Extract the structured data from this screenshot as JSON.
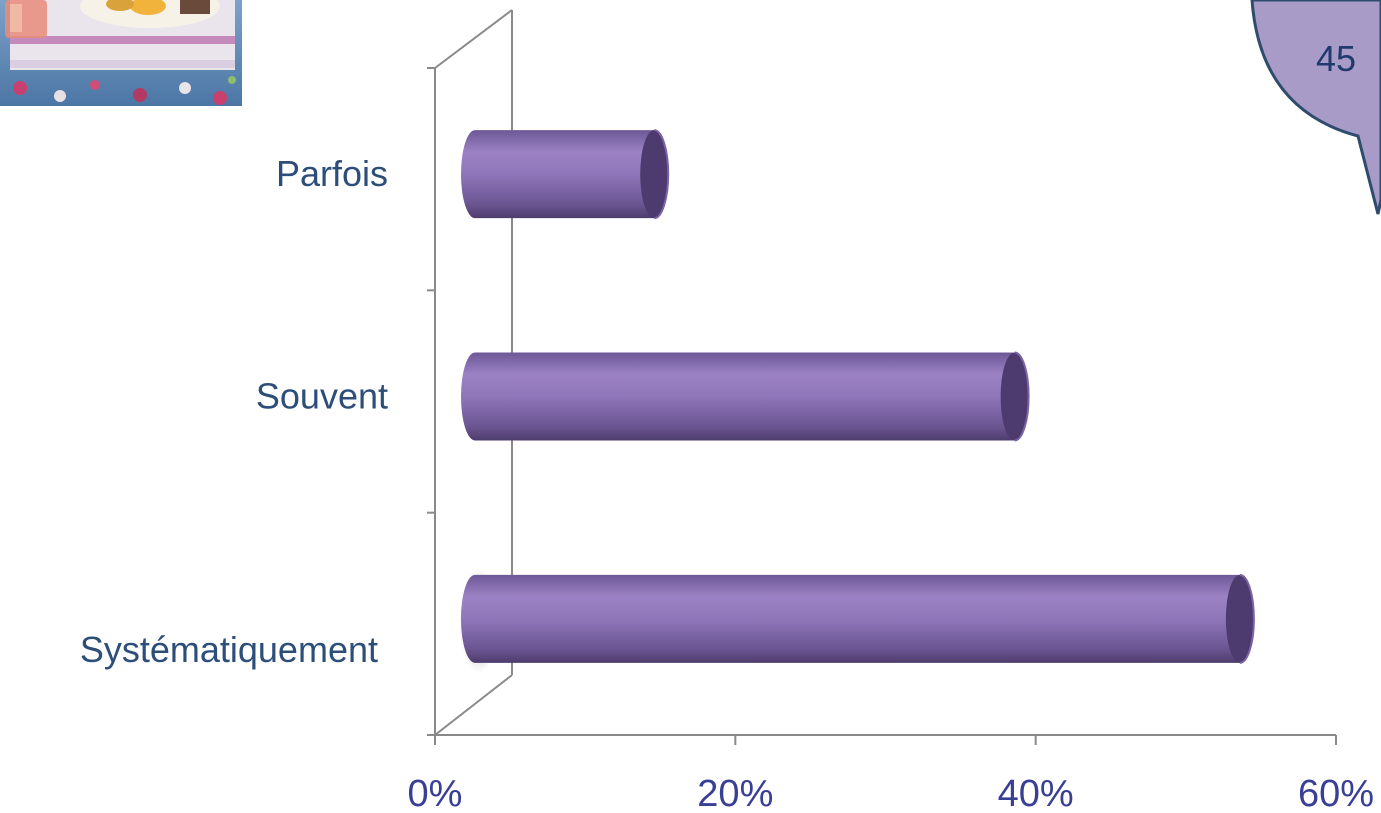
{
  "bubble": {
    "number": "45"
  },
  "chart_data": {
    "type": "bar",
    "orientation": "horizontal",
    "style": "3d-cylinder",
    "categories": [
      "Parfois",
      "Souvent",
      "Systématiquement"
    ],
    "values": [
      0.13,
      0.37,
      0.52
    ],
    "xlim": [
      0,
      0.6
    ],
    "x_ticks": [
      {
        "value": 0,
        "label": "0%"
      },
      {
        "value": 0.2,
        "label": "20%"
      },
      {
        "value": 0.4,
        "label": "40%"
      },
      {
        "value": 0.6,
        "label": "60%"
      }
    ],
    "title": "",
    "xlabel": "",
    "ylabel": "",
    "grid": false,
    "colors": {
      "bar": "#8c72b4",
      "bar_dark": "#5c4680",
      "bar_end": "#4d3a6e",
      "axis": "#8a8a8a",
      "category_text": "#2e4e7a",
      "tick_text": "#3a3f96"
    }
  }
}
